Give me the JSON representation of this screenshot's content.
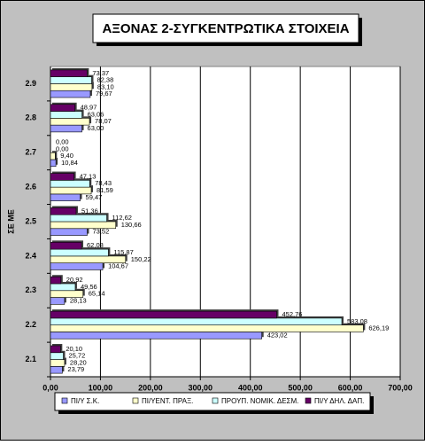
{
  "chart_data": {
    "type": "hbar",
    "title": "ΑΞΟΝΑΣ 2-ΣΥΓΚΕΝΤΡΩΤΙΚΑ ΣΤΟΙΧΕΙΑ",
    "y_label": "ΣΕ ΜΕ",
    "categories": [
      "2.1",
      "2.2",
      "2.3",
      "2.4",
      "2.5",
      "2.6",
      "2.7",
      "2.8",
      "2.9"
    ],
    "series": [
      {
        "name": "ΠΙ/Υ Σ.Κ.",
        "color": "#9999ff",
        "values": [
          23.79,
          423.02,
          28.13,
          104.67,
          73.52,
          59.47,
          10.84,
          63.0,
          79.67
        ],
        "value_labels": [
          "23,79",
          "423,02",
          "28,13",
          "104,67",
          "73,52",
          "59,47",
          "10,84",
          "63,00",
          "79,67"
        ]
      },
      {
        "name": "ΠΙ/ΥΕΝΤ. ΠΡΑΞ.",
        "color": "#ffffcc",
        "values": [
          28.2,
          626.19,
          65.14,
          150.22,
          130.66,
          81.59,
          9.4,
          78.07,
          83.1
        ],
        "value_labels": [
          "28,20",
          "626,19",
          "65,14",
          "150,22",
          "130,66",
          "81,59",
          "9,40",
          "78,07",
          "83,10"
        ]
      },
      {
        "name": "ΠΡΟΥΠ. ΝΟΜΙΚ. ΔΕΣΜ.",
        "color": "#ccffff",
        "values": [
          25.72,
          583.08,
          49.56,
          115.87,
          112.62,
          78.43,
          0.0,
          63.06,
          82.38
        ],
        "value_labels": [
          "25,72",
          "583,08",
          "49,56",
          "115,87",
          "112,62",
          "78,43",
          "0,00",
          "63,06",
          "82,38"
        ]
      },
      {
        "name": "ΠΙ/Υ ΔΗΛ. ΔΑΠ.",
        "color": "#660066",
        "values": [
          20.1,
          452.76,
          20.92,
          62.08,
          51.36,
          47.13,
          0.0,
          48.97,
          73.37
        ],
        "value_labels": [
          "20,10",
          "452,76",
          "20,92",
          "62,08",
          "51,36",
          "47,13",
          "0,00",
          "48,97",
          "73,37"
        ]
      }
    ],
    "xlim": [
      0,
      700
    ],
    "xticks": [
      {
        "value": 0,
        "label": "0,00"
      },
      {
        "value": 100,
        "label": "100,00"
      },
      {
        "value": 200,
        "label": "200,00"
      },
      {
        "value": 300,
        "label": "300,00"
      },
      {
        "value": 400,
        "label": "400,00"
      },
      {
        "value": 500,
        "label": "500,00"
      },
      {
        "value": 600,
        "label": "600,00"
      },
      {
        "value": 700,
        "label": "700,00"
      }
    ],
    "grid": true
  }
}
